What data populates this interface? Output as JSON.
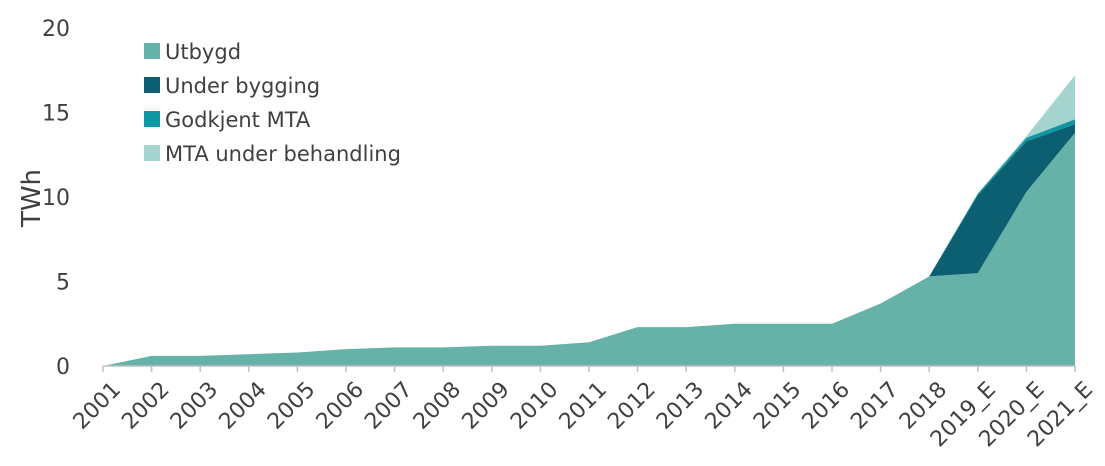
{
  "chart_data": {
    "type": "area",
    "stacked": true,
    "ylabel": "TWh",
    "xlabel": "",
    "ylim": [
      0,
      20
    ],
    "yticks": [
      0,
      5,
      10,
      15,
      20
    ],
    "grid": false,
    "legend_position": "top-left",
    "categories": [
      "2001",
      "2002",
      "2003",
      "2004",
      "2005",
      "2006",
      "2007",
      "2008",
      "2009",
      "2010",
      "2011",
      "2012",
      "2013",
      "2014",
      "2015",
      "2016",
      "2017",
      "2018",
      "2019_E",
      "2020_E",
      "2021_E"
    ],
    "series": [
      {
        "name": "Utbygd",
        "color": "#66b2a8",
        "values": [
          0.0,
          0.6,
          0.6,
          0.7,
          0.8,
          1.0,
          1.1,
          1.1,
          1.2,
          1.2,
          1.4,
          2.3,
          2.3,
          2.5,
          2.5,
          2.5,
          3.7,
          5.3,
          5.5,
          10.3,
          13.8
        ]
      },
      {
        "name": "Under bygging",
        "color": "#0b5f70",
        "values": [
          0,
          0,
          0,
          0,
          0,
          0,
          0,
          0,
          0,
          0,
          0,
          0,
          0,
          0,
          0,
          0,
          0,
          0,
          4.6,
          3.0,
          0.5
        ]
      },
      {
        "name": "Godkjent MTA",
        "color": "#0f96a3",
        "values": [
          0,
          0,
          0,
          0,
          0,
          0,
          0,
          0,
          0,
          0,
          0,
          0,
          0,
          0,
          0,
          0,
          0,
          0,
          0.1,
          0.2,
          0.3
        ]
      },
      {
        "name": "MTA under behandling",
        "color": "#a4d4cd",
        "values": [
          0,
          0,
          0,
          0,
          0,
          0,
          0,
          0,
          0,
          0,
          0,
          0,
          0,
          0,
          0,
          0,
          0,
          0,
          0,
          0.1,
          2.6
        ]
      }
    ]
  }
}
